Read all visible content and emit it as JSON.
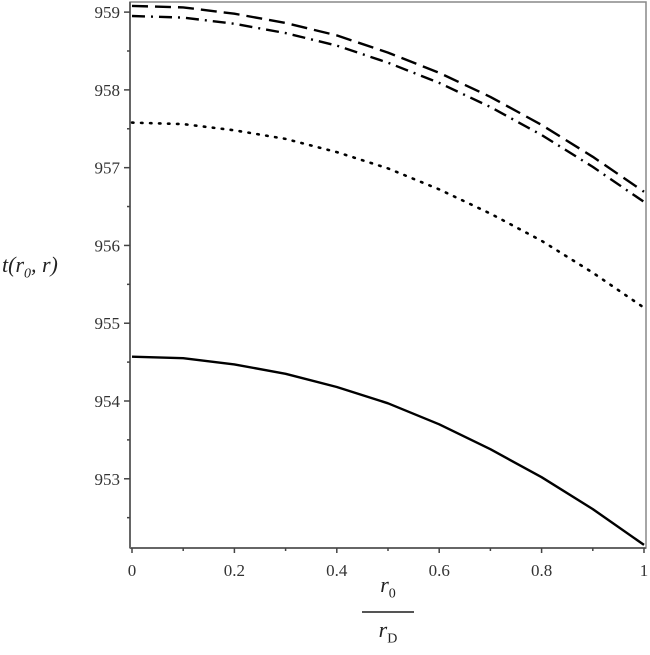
{
  "chart_data": {
    "type": "line",
    "title": "",
    "xlabel": {
      "numerator": "r",
      "numerator_sub": "0",
      "denominator": "r",
      "denominator_sub": "D"
    },
    "ylabel": {
      "text_before": "t(r",
      "sub": "0",
      "text_after": ", r)"
    },
    "xlim": [
      0,
      1
    ],
    "ylim": [
      952.11,
      959.13
    ],
    "xticks": [
      "0",
      "0.2",
      "0.4",
      "0.6",
      "0.8",
      "1"
    ],
    "xtick_values": [
      0,
      0.2,
      0.4,
      0.6,
      0.8,
      1
    ],
    "yticks": [
      "953",
      "954",
      "955",
      "956",
      "957",
      "958",
      "959"
    ],
    "ytick_values": [
      953,
      954,
      955,
      956,
      957,
      958,
      959
    ],
    "grid": false,
    "legend": "none",
    "x": [
      0,
      0.1,
      0.2,
      0.3,
      0.4,
      0.5,
      0.6,
      0.7,
      0.8,
      0.9,
      1.0
    ],
    "series": [
      {
        "style": "dashed",
        "color": "#000000",
        "values": [
          959.08,
          959.06,
          958.98,
          958.86,
          958.7,
          958.48,
          958.22,
          957.91,
          957.55,
          957.14,
          956.69
        ]
      },
      {
        "style": "dashdot",
        "color": "#000000",
        "values": [
          958.95,
          958.93,
          958.85,
          958.73,
          958.57,
          958.35,
          958.09,
          957.78,
          957.42,
          957.01,
          956.56
        ]
      },
      {
        "style": "dotted",
        "color": "#000000",
        "values": [
          957.58,
          957.56,
          957.48,
          957.37,
          957.2,
          956.99,
          956.72,
          956.41,
          956.06,
          955.65,
          955.2
        ]
      },
      {
        "style": "solid",
        "color": "#000000",
        "values": [
          954.57,
          954.55,
          954.47,
          954.35,
          954.18,
          953.97,
          953.7,
          953.38,
          953.02,
          952.61,
          952.15
        ]
      }
    ]
  }
}
